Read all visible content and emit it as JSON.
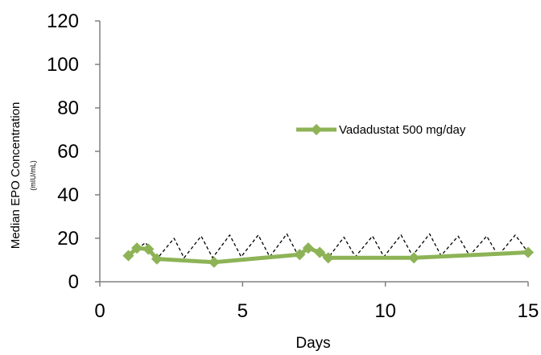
{
  "chart_data": {
    "type": "line",
    "title": "",
    "xlabel": "Days",
    "ylabel": "Median EPO Concentration",
    "ylabel_sub": "(mIU/mL)",
    "xlim": [
      0,
      15
    ],
    "ylim": [
      0,
      120
    ],
    "x_ticks": [
      "0",
      "5",
      "10",
      "15"
    ],
    "y_ticks": [
      "0",
      "20",
      "40",
      "60",
      "80",
      "100",
      "120"
    ],
    "grid": false,
    "legend_position": "right",
    "series": [
      {
        "name": "Vadadustat 500 mg/day",
        "style": "line-with-diamond-markers",
        "color": "#8db356",
        "x": [
          1,
          1.3,
          1.7,
          2,
          4,
          7,
          7.3,
          7.7,
          8,
          11,
          15
        ],
        "y": [
          12,
          15.5,
          15,
          10.5,
          9,
          12.5,
          15.5,
          13.5,
          11,
          11,
          13.5
        ]
      },
      {
        "style": "dashed",
        "color": "#000000",
        "x": [
          1,
          1.6,
          2,
          2.6,
          2.95,
          3.55,
          3.95,
          4.55,
          4.95,
          5.55,
          5.95,
          6.55,
          6.95,
          7.45,
          8,
          8.55,
          8.95,
          9.55,
          9.95,
          10.55,
          10.95,
          11.55,
          11.95,
          12.55,
          12.95,
          13.55,
          13.95,
          14.55,
          15
        ],
        "y": [
          12,
          18,
          10.5,
          20,
          11,
          21,
          11,
          21.5,
          11.5,
          21.5,
          11.5,
          22,
          12,
          15.5,
          11,
          20.5,
          11.5,
          21,
          11.5,
          21.5,
          12,
          22,
          12,
          21,
          12,
          21,
          12,
          21.5,
          13.5
        ]
      }
    ]
  }
}
